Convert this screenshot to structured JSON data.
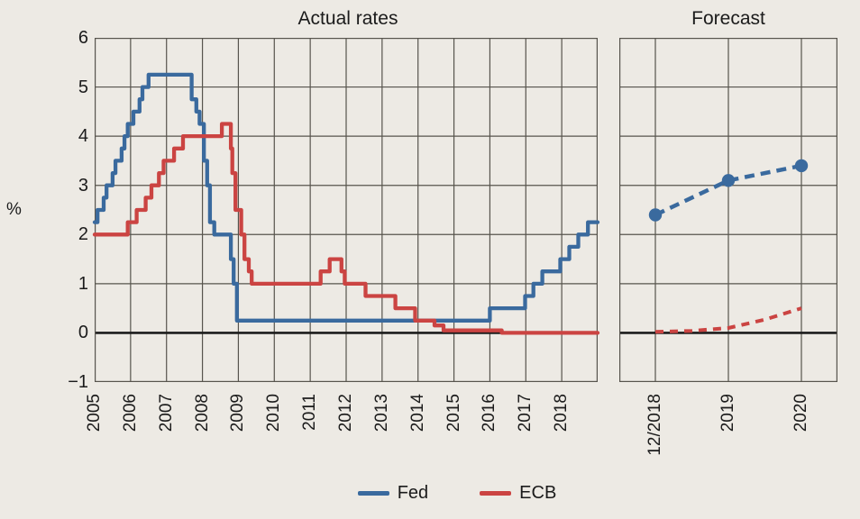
{
  "colors": {
    "background": "#EDEAE4",
    "grid": "#57544D",
    "zero_line": "#1C1C1C",
    "text": "#1B1B1B",
    "fed": "#3A6A9E",
    "ecb": "#CB4442"
  },
  "chart_data": {
    "type": "line",
    "unit_label": "%",
    "y_axis": {
      "range": [
        -1,
        6
      ],
      "ticks": [
        {
          "label": "6",
          "value": 6
        },
        {
          "label": "5",
          "value": 5
        },
        {
          "label": "4",
          "value": 4
        },
        {
          "label": "3",
          "value": 3
        },
        {
          "label": "2",
          "value": 2
        },
        {
          "label": "1",
          "value": 1
        },
        {
          "label": "0",
          "value": 0
        },
        {
          "label": "−1",
          "value": -1
        }
      ]
    },
    "panels": [
      {
        "title": "Actual rates",
        "x_axis": {
          "range": [
            2005,
            2019
          ],
          "ticks": [
            {
              "label": "2005",
              "value": 2005
            },
            {
              "label": "2006",
              "value": 2006
            },
            {
              "label": "2007",
              "value": 2007
            },
            {
              "label": "2008",
              "value": 2008
            },
            {
              "label": "2009",
              "value": 2009
            },
            {
              "label": "2010",
              "value": 2010
            },
            {
              "label": "2011",
              "value": 2011
            },
            {
              "label": "2012",
              "value": 2012
            },
            {
              "label": "2013",
              "value": 2013
            },
            {
              "label": "2014",
              "value": 2014
            },
            {
              "label": "2015",
              "value": 2015
            },
            {
              "label": "2016",
              "value": 2016
            },
            {
              "label": "2017",
              "value": 2017
            },
            {
              "label": "2018",
              "value": 2018
            }
          ]
        },
        "series": [
          {
            "name": "Fed",
            "color_key": "fed",
            "line_style": "solid",
            "draw": "step",
            "markers": false,
            "points": [
              [
                2005.0,
                2.25
              ],
              [
                2005.08,
                2.5
              ],
              [
                2005.25,
                2.75
              ],
              [
                2005.33,
                3.0
              ],
              [
                2005.5,
                3.25
              ],
              [
                2005.58,
                3.5
              ],
              [
                2005.75,
                3.75
              ],
              [
                2005.83,
                4.0
              ],
              [
                2005.92,
                4.25
              ],
              [
                2006.08,
                4.5
              ],
              [
                2006.25,
                4.75
              ],
              [
                2006.33,
                5.0
              ],
              [
                2006.5,
                5.25
              ],
              [
                2007.7,
                4.75
              ],
              [
                2007.83,
                4.5
              ],
              [
                2007.92,
                4.25
              ],
              [
                2008.04,
                3.5
              ],
              [
                2008.13,
                3.0
              ],
              [
                2008.21,
                2.25
              ],
              [
                2008.33,
                2.0
              ],
              [
                2008.79,
                1.5
              ],
              [
                2008.87,
                1.0
              ],
              [
                2008.96,
                0.25
              ],
              [
                2016.0,
                0.5
              ],
              [
                2016.98,
                0.75
              ],
              [
                2017.21,
                1.0
              ],
              [
                2017.46,
                1.25
              ],
              [
                2017.96,
                1.5
              ],
              [
                2018.21,
                1.75
              ],
              [
                2018.46,
                2.0
              ],
              [
                2018.73,
                2.25
              ]
            ]
          },
          {
            "name": "ECB",
            "color_key": "ecb",
            "line_style": "solid",
            "draw": "step",
            "markers": false,
            "points": [
              [
                2005.0,
                2.0
              ],
              [
                2005.92,
                2.25
              ],
              [
                2006.17,
                2.5
              ],
              [
                2006.42,
                2.75
              ],
              [
                2006.58,
                3.0
              ],
              [
                2006.79,
                3.25
              ],
              [
                2006.92,
                3.5
              ],
              [
                2007.21,
                3.75
              ],
              [
                2007.46,
                4.0
              ],
              [
                2008.54,
                4.25
              ],
              [
                2008.79,
                3.75
              ],
              [
                2008.83,
                3.25
              ],
              [
                2008.92,
                2.5
              ],
              [
                2009.08,
                2.0
              ],
              [
                2009.17,
                1.5
              ],
              [
                2009.29,
                1.25
              ],
              [
                2009.37,
                1.0
              ],
              [
                2011.29,
                1.25
              ],
              [
                2011.54,
                1.5
              ],
              [
                2011.87,
                1.25
              ],
              [
                2011.96,
                1.0
              ],
              [
                2012.54,
                0.75
              ],
              [
                2013.37,
                0.5
              ],
              [
                2013.92,
                0.25
              ],
              [
                2014.46,
                0.15
              ],
              [
                2014.71,
                0.05
              ],
              [
                2016.33,
                0.0
              ]
            ]
          }
        ]
      },
      {
        "title": "Forecast",
        "x_axis": {
          "ticks": [
            {
              "label": "12/2018",
              "value": 0
            },
            {
              "label": "2019",
              "value": 1
            },
            {
              "label": "2020",
              "value": 2
            }
          ]
        },
        "series": [
          {
            "name": "Fed",
            "color_key": "fed",
            "line_style": "dashed",
            "draw": "line",
            "markers": true,
            "points": [
              [
                0,
                2.4
              ],
              [
                1,
                3.1
              ],
              [
                2,
                3.4
              ]
            ]
          },
          {
            "name": "ECB",
            "color_key": "ecb",
            "line_style": "dashed",
            "draw": "line",
            "markers": false,
            "points": [
              [
                0,
                0.02
              ],
              [
                0.5,
                0.04
              ],
              [
                1,
                0.1
              ],
              [
                1.5,
                0.27
              ],
              [
                2,
                0.5
              ]
            ]
          }
        ]
      }
    ],
    "legend": [
      {
        "label": "Fed",
        "color_key": "fed"
      },
      {
        "label": "ECB",
        "color_key": "ecb"
      }
    ]
  }
}
